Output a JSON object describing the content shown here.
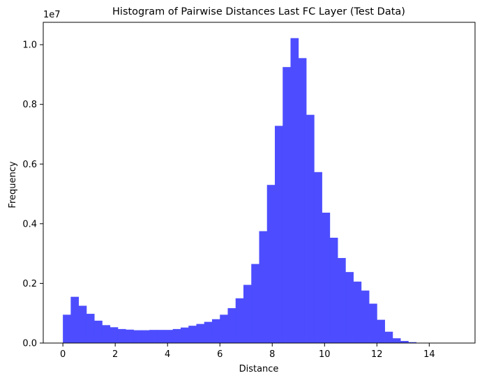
{
  "chart_data": {
    "type": "bar",
    "title": "Histogram of Pairwise Distances Last FC Layer (Test Data)",
    "xlabel": "Distance",
    "ylabel": "Frequency",
    "y_offset_label": "1e7",
    "xlim": [
      -0.75,
      15.75
    ],
    "ylim": [
      0,
      1.075
    ],
    "x_ticks": [
      0,
      2,
      4,
      6,
      8,
      10,
      12,
      14
    ],
    "y_ticks": [
      0.0,
      0.2,
      0.4,
      0.6,
      0.8,
      1.0
    ],
    "y_tick_labels": [
      "0.0",
      "0.2",
      "0.4",
      "0.6",
      "0.8",
      "1.0"
    ],
    "grid": false,
    "legend": "none",
    "bar_color": "#4d4dff",
    "bin_start": 0,
    "bin_width": 0.3,
    "values": [
      0.095,
      0.155,
      0.125,
      0.098,
      0.075,
      0.06,
      0.053,
      0.047,
      0.045,
      0.043,
      0.043,
      0.044,
      0.044,
      0.044,
      0.047,
      0.052,
      0.058,
      0.064,
      0.071,
      0.08,
      0.095,
      0.117,
      0.15,
      0.195,
      0.265,
      0.375,
      0.53,
      0.728,
      0.925,
      1.022,
      0.955,
      0.765,
      0.573,
      0.437,
      0.353,
      0.285,
      0.238,
      0.206,
      0.176,
      0.132,
      0.078,
      0.038,
      0.016,
      0.007,
      0.003,
      0.001,
      0.0003,
      0.0001,
      5e-05,
      2e-05
    ]
  }
}
